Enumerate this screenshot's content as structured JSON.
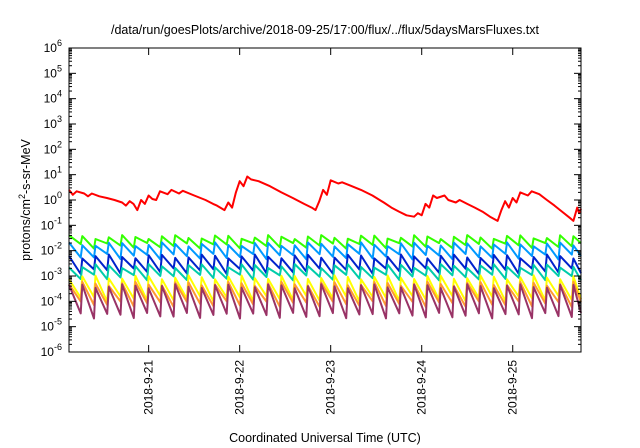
{
  "chart_data": {
    "type": "line",
    "title": "/data/run/goesPlots/archive/2018-09-25/17:00/flux/../flux/5daysMarsFluxes.txt",
    "xlabel": "Coordinated Universal Time (UTC)",
    "ylabel": "protons/cm2-s-sr-MeV",
    "ylabel_parts": {
      "pre": "protons/cm",
      "sup": "2",
      "post": "-s-sr-MeV"
    },
    "y_scale": "log",
    "ylim": [
      1e-06,
      1000000.0
    ],
    "xlim": [
      "2018-09-20 03:00",
      "2018-09-25 18:00"
    ],
    "y_ticks": [
      {
        "base": "10",
        "exp": "-6"
      },
      {
        "base": "10",
        "exp": "-5"
      },
      {
        "base": "10",
        "exp": "-4"
      },
      {
        "base": "10",
        "exp": "-3"
      },
      {
        "base": "10",
        "exp": "-2"
      },
      {
        "base": "10",
        "exp": "-1"
      },
      {
        "base": "10",
        "exp": "0"
      },
      {
        "base": "10",
        "exp": "1"
      },
      {
        "base": "10",
        "exp": "2"
      },
      {
        "base": "10",
        "exp": "3"
      },
      {
        "base": "10",
        "exp": "4"
      },
      {
        "base": "10",
        "exp": "5"
      },
      {
        "base": "10",
        "exp": "6"
      }
    ],
    "x_ticks": [
      "2018-9-21",
      "2018-9-22",
      "2018-9-23",
      "2018-9-24",
      "2018-9-25"
    ],
    "grid": false,
    "legend": "none",
    "series": [
      {
        "color": "#ff0000",
        "sawtooth": false,
        "points": [
          [
            "2018-09-20 03:00",
            2.5
          ],
          [
            "2018-09-20 04:00",
            1.6
          ],
          [
            "2018-09-20 05:00",
            2.2
          ],
          [
            "2018-09-20 07:00",
            1.8
          ],
          [
            "2018-09-20 08:00",
            1.4
          ],
          [
            "2018-09-20 09:00",
            1.8
          ],
          [
            "2018-09-20 11:00",
            1.4
          ],
          [
            "2018-09-20 13:00",
            1.2
          ],
          [
            "2018-09-20 15:00",
            1.0
          ],
          [
            "2018-09-20 17:00",
            0.8
          ],
          [
            "2018-09-20 18:00",
            0.6
          ],
          [
            "2018-09-20 19:00",
            0.9
          ],
          [
            "2018-09-20 20:00",
            0.7
          ],
          [
            "2018-09-20 21:00",
            0.4
          ],
          [
            "2018-09-20 22:00",
            1.0
          ],
          [
            "2018-09-20 23:00",
            0.7
          ],
          [
            "2018-09-21 00:00",
            1.5
          ],
          [
            "2018-09-21 01:00",
            1.1
          ],
          [
            "2018-09-21 02:00",
            1.0
          ],
          [
            "2018-09-21 03:00",
            2.2
          ],
          [
            "2018-09-21 05:00",
            1.7
          ],
          [
            "2018-09-21 06:00",
            2.5
          ],
          [
            "2018-09-21 08:00",
            1.8
          ],
          [
            "2018-09-21 09:00",
            2.3
          ],
          [
            "2018-09-21 12:00",
            1.5
          ],
          [
            "2018-09-21 15:00",
            1.0
          ],
          [
            "2018-09-21 17:00",
            0.7
          ],
          [
            "2018-09-21 18:00",
            0.6
          ],
          [
            "2018-09-21 20:00",
            0.4
          ],
          [
            "2018-09-21 21:00",
            0.8
          ],
          [
            "2018-09-21 22:00",
            0.5
          ],
          [
            "2018-09-21 23:00",
            2.0
          ],
          [
            "2018-09-22 00:00",
            5.5
          ],
          [
            "2018-09-22 01:00",
            3.5
          ],
          [
            "2018-09-22 02:00",
            8.5
          ],
          [
            "2018-09-22 03:00",
            6.5
          ],
          [
            "2018-09-22 05:00",
            5.5
          ],
          [
            "2018-09-22 08:00",
            3.5
          ],
          [
            "2018-09-22 11:00",
            2.0
          ],
          [
            "2018-09-22 14:00",
            1.2
          ],
          [
            "2018-09-22 17:00",
            0.7
          ],
          [
            "2018-09-22 19:00",
            0.5
          ],
          [
            "2018-09-22 20:00",
            0.4
          ],
          [
            "2018-09-22 21:00",
            0.9
          ],
          [
            "2018-09-22 22:00",
            2.5
          ],
          [
            "2018-09-22 23:00",
            1.6
          ],
          [
            "2018-09-23 00:00",
            6.0
          ],
          [
            "2018-09-23 02:00",
            4.5
          ],
          [
            "2018-09-23 03:00",
            5.0
          ],
          [
            "2018-09-23 05:00",
            3.8
          ],
          [
            "2018-09-23 08:00",
            2.5
          ],
          [
            "2018-09-23 11:00",
            1.5
          ],
          [
            "2018-09-23 14:00",
            0.8
          ],
          [
            "2018-09-23 16:00",
            0.5
          ],
          [
            "2018-09-23 18:00",
            0.35
          ],
          [
            "2018-09-23 20:00",
            0.25
          ],
          [
            "2018-09-23 22:00",
            0.22
          ],
          [
            "2018-09-23 23:00",
            0.3
          ],
          [
            "2018-09-24 00:00",
            0.25
          ],
          [
            "2018-09-24 01:00",
            0.7
          ],
          [
            "2018-09-24 02:00",
            0.5
          ],
          [
            "2018-09-24 03:00",
            1.5
          ],
          [
            "2018-09-24 04:00",
            1.2
          ],
          [
            "2018-09-24 06:00",
            1.5
          ],
          [
            "2018-09-24 07:00",
            1.0
          ],
          [
            "2018-09-24 09:00",
            0.8
          ],
          [
            "2018-09-24 10:00",
            1.0
          ],
          [
            "2018-09-24 12:00",
            0.7
          ],
          [
            "2018-09-24 14:00",
            0.5
          ],
          [
            "2018-09-24 16:00",
            0.35
          ],
          [
            "2018-09-24 18:00",
            0.22
          ],
          [
            "2018-09-24 20:00",
            0.15
          ],
          [
            "2018-09-24 21:00",
            0.4
          ],
          [
            "2018-09-24 22:00",
            0.9
          ],
          [
            "2018-09-24 23:00",
            0.5
          ],
          [
            "2018-09-25 00:00",
            1.2
          ],
          [
            "2018-09-25 01:00",
            0.8
          ],
          [
            "2018-09-25 02:00",
            2.0
          ],
          [
            "2018-09-25 04:00",
            1.5
          ],
          [
            "2018-09-25 05:00",
            2.2
          ],
          [
            "2018-09-25 07:00",
            1.7
          ],
          [
            "2018-09-25 09:00",
            1.0
          ],
          [
            "2018-09-25 11:00",
            0.6
          ],
          [
            "2018-09-25 13:00",
            0.35
          ],
          [
            "2018-09-25 15:00",
            0.2
          ],
          [
            "2018-09-25 16:00",
            0.15
          ],
          [
            "2018-09-25 17:00",
            0.5
          ],
          [
            "2018-09-25 17:30",
            0.3
          ],
          [
            "2018-09-25 18:00",
            0.45
          ]
        ]
      },
      {
        "color": "#33ff00",
        "sawtooth": true,
        "peak": 0.035,
        "trough": 0.016,
        "period_hours": 3.5
      },
      {
        "color": "#0099ff",
        "sawtooth": true,
        "peak": 0.018,
        "trough": 0.006,
        "period_hours": 3.5
      },
      {
        "color": "#0022cc",
        "sawtooth": true,
        "peak": 0.006,
        "trough": 0.0016,
        "period_hours": 3.5
      },
      {
        "color": "#00ccaa",
        "sawtooth": true,
        "peak": 0.0025,
        "trough": 0.0009,
        "period_hours": 3.5
      },
      {
        "color": "#ffff00",
        "sawtooth": true,
        "peak": 0.0009,
        "trough": 0.00013,
        "period_hours": 3.5
      },
      {
        "color": "#ff9933",
        "sawtooth": true,
        "peak": 0.0005,
        "trough": 8e-05,
        "period_hours": 3.5
      },
      {
        "color": "#993366",
        "sawtooth": true,
        "peak": 0.0004,
        "trough": 2.8e-05,
        "period_hours": 3.5
      }
    ]
  }
}
